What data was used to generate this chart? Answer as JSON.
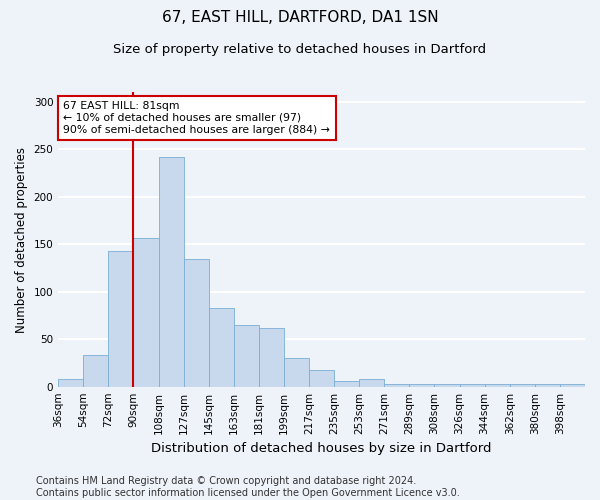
{
  "title1": "67, EAST HILL, DARTFORD, DA1 1SN",
  "title2": "Size of property relative to detached houses in Dartford",
  "xlabel": "Distribution of detached houses by size in Dartford",
  "ylabel": "Number of detached properties",
  "categories": [
    "36sqm",
    "54sqm",
    "72sqm",
    "90sqm",
    "108sqm",
    "127sqm",
    "145sqm",
    "163sqm",
    "181sqm",
    "199sqm",
    "217sqm",
    "235sqm",
    "253sqm",
    "271sqm",
    "289sqm",
    "308sqm",
    "326sqm",
    "344sqm",
    "362sqm",
    "380sqm",
    "398sqm"
  ],
  "values": [
    8,
    33,
    143,
    157,
    242,
    135,
    83,
    65,
    62,
    30,
    18,
    6,
    8,
    3,
    3,
    3,
    3,
    3,
    3,
    3,
    3
  ],
  "bar_color": "#c8d9ee",
  "bar_edge_color": "#7aafd4",
  "vline_color": "#cc0000",
  "annotation_text": "67 EAST HILL: 81sqm\n← 10% of detached houses are smaller (97)\n90% of semi-detached houses are larger (884) →",
  "annotation_box_color": "#ffffff",
  "annotation_box_edge_color": "#cc0000",
  "footnote": "Contains HM Land Registry data © Crown copyright and database right 2024.\nContains public sector information licensed under the Open Government Licence v3.0.",
  "bg_color": "#eef2f9",
  "ylim": [
    0,
    310
  ],
  "grid_color": "#ffffff",
  "title1_fontsize": 11,
  "title2_fontsize": 9.5,
  "xlabel_fontsize": 9.5,
  "ylabel_fontsize": 8.5,
  "tick_fontsize": 7.5,
  "footnote_fontsize": 7,
  "vline_x_index": 3
}
